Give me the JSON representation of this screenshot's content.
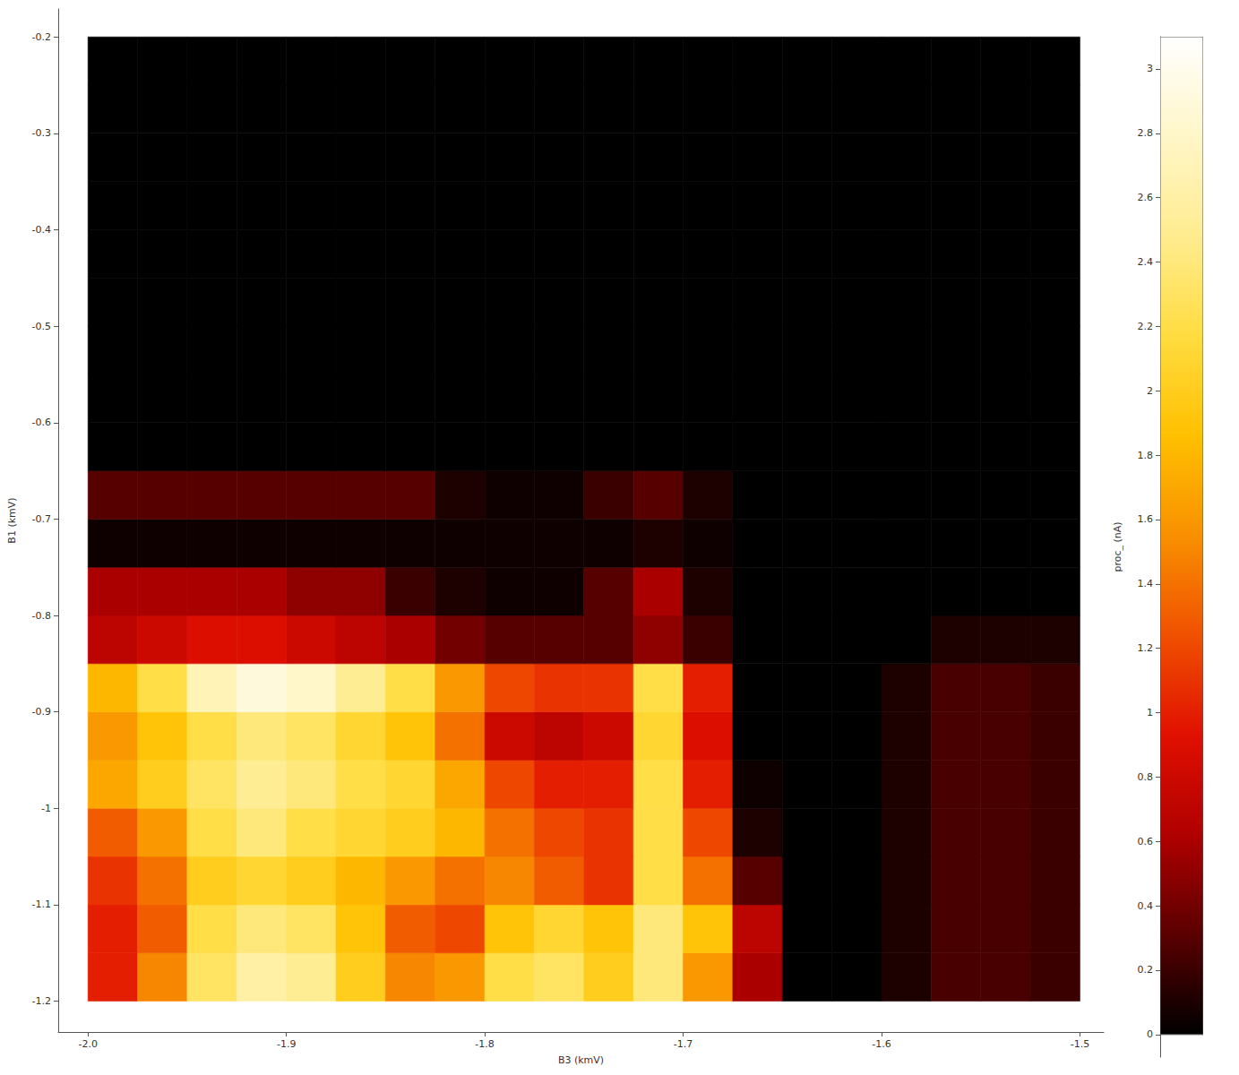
{
  "chart_data": {
    "type": "heatmap",
    "xlabel": "B3 (kmV)",
    "ylabel": "B1 (kmV)",
    "x": [
      -1.9875,
      -1.9625,
      -1.9375,
      -1.9125,
      -1.8875,
      -1.8625,
      -1.8375,
      -1.8125,
      -1.7875,
      -1.7625,
      -1.7375,
      -1.7125,
      -1.6875,
      -1.6625,
      -1.6375,
      -1.6125,
      -1.5875,
      -1.5625,
      -1.5375,
      -1.5125
    ],
    "y": [
      -1.175,
      -1.125,
      -1.075,
      -1.025,
      -0.975,
      -0.925,
      -0.875,
      -0.825,
      -0.775,
      -0.725,
      -0.675,
      -0.625,
      -0.575,
      -0.525,
      -0.475,
      -0.425,
      -0.375,
      -0.325,
      -0.275,
      -0.225
    ],
    "z": [
      [
        1.0,
        1.5,
        2.3,
        2.6,
        2.5,
        2.0,
        1.5,
        1.6,
        2.2,
        2.3,
        2.0,
        2.4,
        1.6,
        0.6,
        0,
        0,
        0.1,
        0.25,
        0.25,
        0.2
      ],
      [
        1.0,
        1.3,
        2.2,
        2.4,
        2.3,
        1.9,
        1.3,
        1.2,
        1.9,
        2.1,
        1.9,
        2.4,
        1.9,
        0.7,
        0,
        0,
        0.1,
        0.25,
        0.25,
        0.2
      ],
      [
        1.1,
        1.4,
        2.0,
        2.1,
        2.0,
        1.8,
        1.6,
        1.4,
        1.5,
        1.3,
        1.1,
        2.2,
        1.4,
        0.3,
        0,
        0,
        0.1,
        0.25,
        0.25,
        0.2
      ],
      [
        1.3,
        1.6,
        2.2,
        2.4,
        2.2,
        2.1,
        2.0,
        1.8,
        1.4,
        1.2,
        1.1,
        2.2,
        1.2,
        0.1,
        0,
        0,
        0.1,
        0.25,
        0.25,
        0.2
      ],
      [
        1.7,
        2.0,
        2.3,
        2.5,
        2.4,
        2.2,
        2.1,
        1.7,
        1.2,
        1.0,
        1.0,
        2.2,
        1.0,
        0.05,
        0,
        0,
        0.1,
        0.25,
        0.25,
        0.2
      ],
      [
        1.6,
        1.9,
        2.2,
        2.4,
        2.3,
        2.1,
        1.9,
        1.4,
        0.8,
        0.7,
        0.8,
        2.1,
        0.9,
        0,
        0,
        0,
        0.1,
        0.25,
        0.25,
        0.2
      ],
      [
        1.8,
        2.2,
        2.7,
        2.9,
        2.8,
        2.5,
        2.2,
        1.6,
        1.2,
        1.1,
        1.1,
        2.2,
        1.0,
        0,
        0,
        0,
        0.1,
        0.25,
        0.25,
        0.2
      ],
      [
        0.7,
        0.8,
        0.9,
        0.9,
        0.8,
        0.7,
        0.6,
        0.4,
        0.3,
        0.3,
        0.3,
        0.5,
        0.2,
        0,
        0,
        0,
        0,
        0.1,
        0.1,
        0.1
      ],
      [
        0.6,
        0.6,
        0.6,
        0.6,
        0.5,
        0.5,
        0.2,
        0.1,
        0.05,
        0.05,
        0.3,
        0.6,
        0.1,
        0,
        0,
        0,
        0,
        0,
        0,
        0
      ],
      [
        0.05,
        0.05,
        0.05,
        0.05,
        0.05,
        0.05,
        0.05,
        0.05,
        0.05,
        0.05,
        0.05,
        0.1,
        0.05,
        0,
        0,
        0,
        0,
        0,
        0,
        0
      ],
      [
        0.3,
        0.3,
        0.3,
        0.3,
        0.3,
        0.3,
        0.3,
        0.1,
        0.05,
        0.05,
        0.2,
        0.3,
        0.1,
        0,
        0,
        0,
        0,
        0,
        0,
        0
      ],
      [
        0,
        0,
        0,
        0,
        0,
        0,
        0,
        0,
        0,
        0,
        0,
        0,
        0,
        0,
        0,
        0,
        0,
        0,
        0,
        0
      ],
      [
        0,
        0,
        0,
        0,
        0,
        0,
        0,
        0,
        0,
        0,
        0,
        0,
        0,
        0,
        0,
        0,
        0,
        0,
        0,
        0
      ],
      [
        0,
        0,
        0,
        0,
        0,
        0,
        0,
        0,
        0,
        0,
        0,
        0,
        0,
        0,
        0,
        0,
        0,
        0,
        0,
        0
      ],
      [
        0,
        0,
        0,
        0,
        0,
        0,
        0,
        0,
        0,
        0,
        0,
        0,
        0,
        0,
        0,
        0,
        0,
        0,
        0,
        0
      ],
      [
        0,
        0,
        0,
        0,
        0,
        0,
        0,
        0,
        0,
        0,
        0,
        0,
        0,
        0,
        0,
        0,
        0,
        0,
        0,
        0
      ],
      [
        0,
        0,
        0,
        0,
        0,
        0,
        0,
        0,
        0,
        0,
        0,
        0,
        0,
        0,
        0,
        0,
        0,
        0,
        0,
        0
      ],
      [
        0,
        0,
        0,
        0,
        0,
        0,
        0,
        0,
        0,
        0,
        0,
        0,
        0,
        0,
        0,
        0,
        0,
        0,
        0,
        0
      ],
      [
        0,
        0,
        0,
        0,
        0,
        0,
        0,
        0,
        0,
        0,
        0,
        0,
        0,
        0,
        0,
        0,
        0,
        0,
        0,
        0
      ],
      [
        0,
        0,
        0,
        0,
        0,
        0,
        0,
        0,
        0,
        0,
        0,
        0,
        0,
        0,
        0,
        0,
        0,
        0,
        0,
        0
      ]
    ],
    "xlim": [
      -2.015,
      -1.488
    ],
    "xticks": [
      {
        "value": -2,
        "label": "-2.0"
      },
      -1.9,
      -1.8,
      -1.7,
      -1.6,
      -1.5
    ],
    "ylim": [
      -1.232,
      -0.171
    ],
    "yticks": [
      -1.2,
      -1.1,
      {
        "value": -1,
        "label": "-1"
      },
      -0.9,
      -0.8,
      -0.7,
      -0.6,
      -0.5,
      -0.4,
      -0.3,
      -0.2
    ],
    "colorbar": {
      "label": "proc_ (nA)",
      "range": [
        0,
        3.1
      ],
      "lim": [
        -0.07,
        3.1
      ],
      "ticks": [
        0,
        0.2,
        0.4,
        0.6,
        0.8,
        1,
        1.2,
        1.4,
        1.6,
        1.8,
        2,
        2.2,
        2.4,
        2.6,
        2.8,
        3
      ]
    },
    "grid": false
  }
}
